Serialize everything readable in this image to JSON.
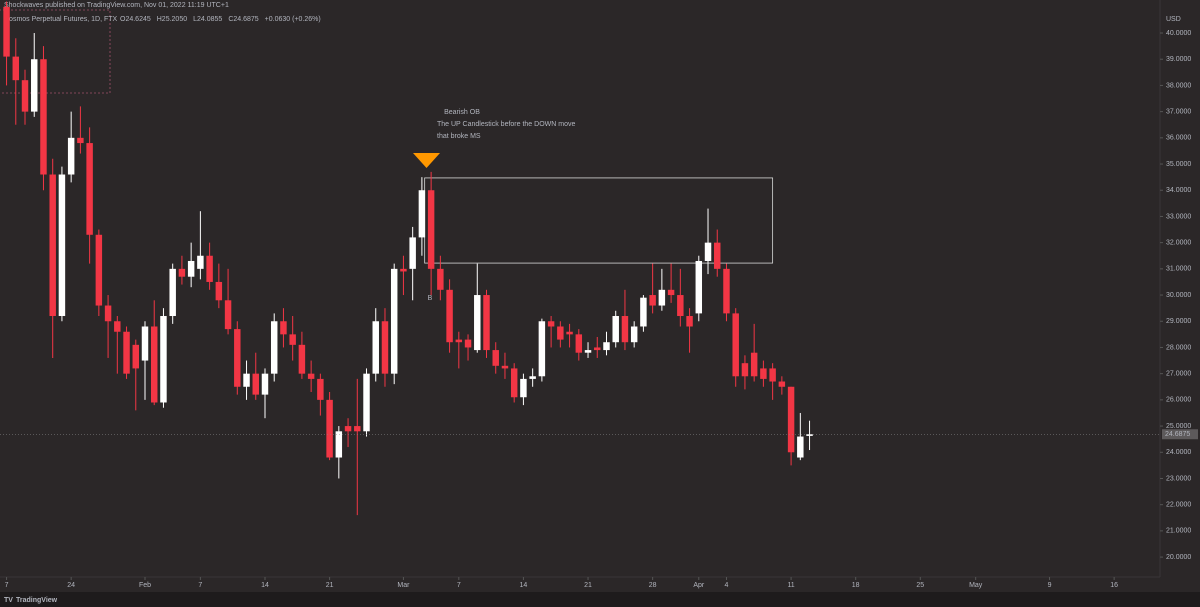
{
  "chart_data": {
    "type": "candlestick",
    "attribution": "Shockwaves published on TradingView.com, Nov 01, 2022 11:19 UTC+1",
    "title": "Cosmos Perpetual Futures, 1D, FTX",
    "ohlc_header": [
      "O24.6245",
      "H25.2050",
      "L24.0855",
      "C24.6875",
      "+0.0630 (+0.26%)"
    ],
    "currency": "USD",
    "brand": "TradingView",
    "up_color": "#ffffff",
    "down_color": "#f23645",
    "grid": false,
    "x": [
      0,
      1,
      2,
      3,
      4,
      5,
      6,
      7,
      8,
      9,
      10,
      11,
      12,
      13,
      14,
      15,
      16,
      17,
      18,
      19,
      20,
      21,
      22,
      23,
      24,
      25,
      26,
      27,
      28,
      29,
      30,
      31,
      32,
      33,
      34,
      35,
      36,
      37,
      38,
      39,
      40,
      41,
      42,
      43,
      44,
      45,
      46,
      47,
      48,
      49,
      50,
      51,
      52,
      53,
      54,
      55,
      56,
      57,
      58,
      59,
      60,
      61,
      62,
      63,
      64,
      65,
      66,
      67,
      68,
      69,
      70,
      71,
      72,
      73,
      74,
      75,
      76,
      77,
      78,
      79,
      80,
      81,
      82,
      83,
      84,
      85,
      86,
      87
    ],
    "open": [
      41.0,
      39.1,
      38.2,
      37.0,
      39.0,
      34.6,
      29.2,
      34.6,
      36.0,
      35.8,
      32.3,
      29.6,
      29.0,
      28.6,
      28.1,
      27.5,
      28.8,
      25.9,
      29.2,
      31.0,
      30.7,
      31.0,
      31.5,
      30.5,
      29.8,
      28.7,
      26.5,
      27.0,
      26.2,
      27.0,
      29.0,
      28.5,
      28.1,
      27.0,
      26.8,
      26.0,
      23.8,
      25.0,
      25.0,
      24.8,
      27.0,
      29.0,
      27.0,
      31.0,
      31.0,
      32.2,
      34.0,
      31.0,
      30.2,
      28.3,
      28.3,
      27.9,
      30.0,
      27.9,
      27.3,
      27.2,
      26.1,
      26.8,
      26.9,
      29.0,
      28.8,
      28.6,
      28.5,
      27.8,
      28.0,
      27.9,
      28.2,
      29.2,
      28.2,
      28.8,
      30.0,
      29.6,
      30.2,
      30.0,
      29.2,
      29.3,
      31.3,
      32.0,
      31.0,
      29.3,
      27.4,
      27.8,
      27.2,
      27.2,
      26.7,
      26.5,
      23.8,
      24.6245
    ],
    "high": [
      41.2,
      39.8,
      38.6,
      40.0,
      39.5,
      35.2,
      34.9,
      37.0,
      37.2,
      36.4,
      32.5,
      30.0,
      29.2,
      28.8,
      28.3,
      29.0,
      29.8,
      29.5,
      31.2,
      31.5,
      32.0,
      33.2,
      32.0,
      31.2,
      31.0,
      29.0,
      27.5,
      27.8,
      27.2,
      29.3,
      29.5,
      29.2,
      28.6,
      27.5,
      27.0,
      26.3,
      25.0,
      25.3,
      26.8,
      27.2,
      29.5,
      29.5,
      31.2,
      31.5,
      32.6,
      34.5,
      34.7,
      31.5,
      30.6,
      28.6,
      28.5,
      31.2,
      30.2,
      28.2,
      27.8,
      27.4,
      27.0,
      27.2,
      29.1,
      29.2,
      29.0,
      28.9,
      28.7,
      28.2,
      28.4,
      28.6,
      29.4,
      30.2,
      29.0,
      30.0,
      31.2,
      31.0,
      31.2,
      31.0,
      29.5,
      31.5,
      33.3,
      32.5,
      31.2,
      29.5,
      27.7,
      28.9,
      27.5,
      27.4,
      26.9,
      26.5,
      25.5,
      25.205
    ],
    "low": [
      38.0,
      36.5,
      36.5,
      36.8,
      34.0,
      27.6,
      29.0,
      34.3,
      35.4,
      31.2,
      29.2,
      27.6,
      27.0,
      26.8,
      25.6,
      26.0,
      25.8,
      25.7,
      28.9,
      30.4,
      30.3,
      30.6,
      30.2,
      29.5,
      28.5,
      26.2,
      26.0,
      26.0,
      25.3,
      26.7,
      28.0,
      27.5,
      26.8,
      26.3,
      25.4,
      23.7,
      23.0,
      24.2,
      21.6,
      24.6,
      26.7,
      26.5,
      26.6,
      30.0,
      29.8,
      31.5,
      30.0,
      29.8,
      27.8,
      27.2,
      27.5,
      27.8,
      27.6,
      27.0,
      26.8,
      25.9,
      25.8,
      26.5,
      26.7,
      28.0,
      28.0,
      28.0,
      27.5,
      27.6,
      27.6,
      27.7,
      28.0,
      27.9,
      28.0,
      28.6,
      29.3,
      29.4,
      29.7,
      28.8,
      27.8,
      29.0,
      30.8,
      30.7,
      29.0,
      26.5,
      26.4,
      26.7,
      26.5,
      26.0,
      26.2,
      23.5,
      23.7,
      24.0855
    ],
    "close": [
      39.1,
      38.2,
      37.0,
      39.0,
      34.6,
      29.2,
      34.6,
      36.0,
      35.8,
      32.3,
      29.6,
      29.0,
      28.6,
      27.0,
      27.2,
      28.8,
      25.9,
      29.2,
      31.0,
      30.7,
      31.3,
      31.5,
      30.5,
      29.8,
      28.7,
      26.5,
      27.0,
      26.2,
      27.0,
      29.0,
      28.5,
      28.1,
      27.0,
      26.8,
      26.0,
      23.8,
      24.8,
      24.8,
      24.8,
      27.0,
      29.0,
      27.0,
      31.0,
      30.9,
      32.2,
      34.0,
      31.0,
      30.2,
      28.2,
      28.2,
      28.0,
      30.0,
      27.9,
      27.3,
      27.2,
      26.1,
      26.8,
      26.9,
      29.0,
      28.8,
      28.3,
      28.5,
      27.8,
      27.9,
      27.9,
      28.2,
      29.2,
      28.2,
      28.8,
      29.9,
      29.6,
      30.2,
      30.0,
      29.2,
      28.8,
      31.3,
      32.0,
      31.0,
      29.3,
      26.9,
      26.9,
      26.9,
      26.8,
      26.7,
      26.5,
      24.0,
      24.6,
      24.6875
    ],
    "xlim": [
      -0.71,
      124.97
    ],
    "ylim": [
      19.24,
      41.26
    ],
    "xticks": [
      {
        "value": 0,
        "label": "7"
      },
      {
        "value": 7,
        "label": "24"
      },
      {
        "value": 15,
        "label": "Feb"
      },
      {
        "value": 21,
        "label": "7"
      },
      {
        "value": 28,
        "label": "14"
      },
      {
        "value": 35,
        "label": "21"
      },
      {
        "value": 43,
        "label": "Mar"
      },
      {
        "value": 49,
        "label": "7"
      },
      {
        "value": 56,
        "label": "14"
      },
      {
        "value": 63,
        "label": "21"
      },
      {
        "value": 70,
        "label": "28"
      },
      {
        "value": 75,
        "label": "Apr"
      },
      {
        "value": 78,
        "label": "4"
      },
      {
        "value": 85,
        "label": "11"
      },
      {
        "value": 92,
        "label": "18"
      },
      {
        "value": 99,
        "label": "25"
      },
      {
        "value": 105,
        "label": "May"
      },
      {
        "value": 113,
        "label": "9"
      },
      {
        "value": 120,
        "label": "16"
      }
    ],
    "yticks": [
      {
        "value": 20,
        "label": "20.0000"
      },
      {
        "value": 21,
        "label": "21.0000"
      },
      {
        "value": 22,
        "label": "22.0000"
      },
      {
        "value": 23,
        "label": "23.0000"
      },
      {
        "value": 24,
        "label": "24.0000"
      },
      {
        "value": 25,
        "label": "25.0000"
      },
      {
        "value": 26,
        "label": "26.0000"
      },
      {
        "value": 27,
        "label": "27.0000"
      },
      {
        "value": 28,
        "label": "28.0000"
      },
      {
        "value": 29,
        "label": "29.0000"
      },
      {
        "value": 30,
        "label": "30.0000"
      },
      {
        "value": 31,
        "label": "31.0000"
      },
      {
        "value": 32,
        "label": "32.0000"
      },
      {
        "value": 33,
        "label": "33.0000"
      },
      {
        "value": 34,
        "label": "34.0000"
      },
      {
        "value": 35,
        "label": "35.0000"
      },
      {
        "value": 36,
        "label": "36.0000"
      },
      {
        "value": 37,
        "label": "37.0000"
      },
      {
        "value": 38,
        "label": "38.0000"
      },
      {
        "value": 39,
        "label": "39.0000"
      },
      {
        "value": 40,
        "label": "40.0000"
      }
    ],
    "zone": {
      "x": [
        45.3,
        83.0
      ],
      "y": [
        31.22,
        34.47
      ]
    },
    "annotation": [
      "Bearish OB",
      "The UP Candlestick before the DOWN move",
      "that broke MS"
    ],
    "marker_label": "B"
  }
}
